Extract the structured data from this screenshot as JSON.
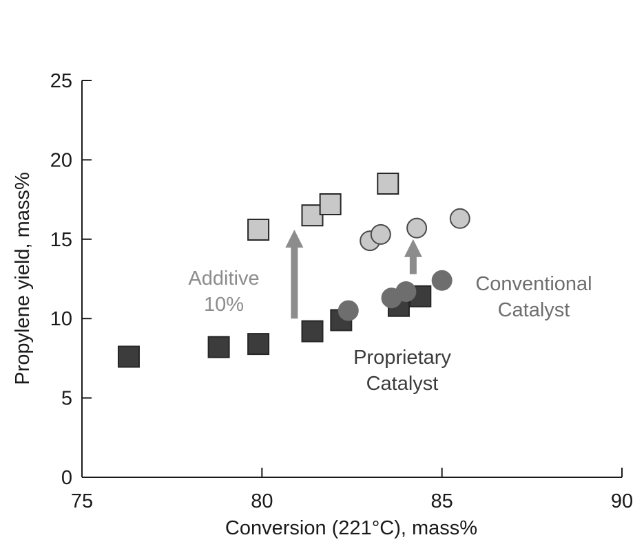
{
  "chart_data": {
    "type": "scatter",
    "xlabel": "Conversion (221°C), mass%",
    "ylabel": "Propylene yield, mass%",
    "xlim": [
      75,
      90
    ],
    "ylim": [
      0,
      25
    ],
    "xticks": [
      "75",
      "80",
      "85",
      "90"
    ],
    "yticks": [
      "0",
      "5",
      "10",
      "15",
      "20",
      "25"
    ],
    "grid": false,
    "series": [
      {
        "marker": "square",
        "color": "#3c3c3c",
        "points": [
          [
            76.3,
            7.6
          ],
          [
            78.8,
            8.2
          ],
          [
            79.9,
            8.4
          ],
          [
            81.4,
            9.2
          ],
          [
            82.2,
            9.9
          ],
          [
            83.8,
            10.8
          ],
          [
            84.4,
            11.4
          ]
        ]
      },
      {
        "marker": "square",
        "color": "#c8c8c8",
        "points": [
          [
            79.9,
            15.6
          ],
          [
            81.4,
            16.5
          ],
          [
            81.9,
            17.2
          ],
          [
            83.5,
            18.5
          ]
        ]
      },
      {
        "marker": "circle",
        "color": "#6e6e6e",
        "points": [
          [
            82.4,
            10.5
          ],
          [
            83.6,
            11.3
          ],
          [
            84.0,
            11.7
          ],
          [
            85.0,
            12.4
          ]
        ]
      },
      {
        "marker": "circle",
        "color": "#c8c8c8",
        "points": [
          [
            83.0,
            14.9
          ],
          [
            83.3,
            15.3
          ],
          [
            84.3,
            15.7
          ],
          [
            85.5,
            16.3
          ]
        ]
      }
    ],
    "annotations": [
      {
        "id": "additive",
        "lines": [
          "Additive",
          "10%"
        ],
        "color": "#8c8c8c"
      },
      {
        "id": "conventional",
        "lines": [
          "Conventional",
          "Catalyst"
        ],
        "color": "#6e6e6e"
      },
      {
        "id": "proprietary",
        "lines": [
          "Proprietary",
          "Catalyst"
        ],
        "color": "#3c3c3c"
      }
    ],
    "arrows": [
      {
        "name": "additive-arrow-large",
        "x": 80.9,
        "y_from": 10.0,
        "y_to": 15.6,
        "color": "#8c8c8c"
      },
      {
        "name": "additive-arrow-small",
        "x": 84.2,
        "y_from": 12.8,
        "y_to": 15.0,
        "color": "#8c8c8c"
      }
    ]
  }
}
